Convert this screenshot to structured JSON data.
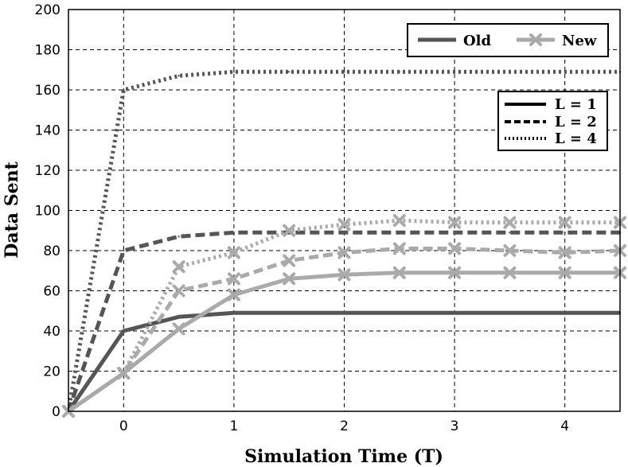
{
  "chart_data": {
    "type": "line",
    "xlabel": "Simulation Time (T)",
    "ylabel": "Data Sent",
    "xlim": [
      -0.5,
      4.5
    ],
    "ylim": [
      0,
      200
    ],
    "x_ticks": [
      0,
      1,
      2,
      3,
      4
    ],
    "y_ticks": [
      0,
      20,
      40,
      60,
      80,
      100,
      120,
      140,
      160,
      180,
      200
    ],
    "grid": true,
    "legend_method": {
      "placement": "top-right",
      "entries": [
        {
          "label": "Old",
          "color": "#555555",
          "marker": "none"
        },
        {
          "label": "New",
          "color": "#aaaaaa",
          "marker": "x"
        }
      ]
    },
    "legend_level": {
      "placement": "upper-right",
      "entries": [
        {
          "label": "L = 1",
          "dash": "solid"
        },
        {
          "label": "L = 2",
          "dash": "dashed"
        },
        {
          "label": "L = 4",
          "dash": "dotted"
        }
      ]
    },
    "series": [
      {
        "method": "Old",
        "level": "L = 1",
        "color": "#555555",
        "dash": "solid",
        "x": [
          -0.5,
          0,
          0.5,
          1,
          1.5,
          2,
          2.5,
          3,
          3.5,
          4,
          4.5
        ],
        "y": [
          0,
          40,
          47,
          49,
          49,
          49,
          49,
          49,
          49,
          49,
          49
        ]
      },
      {
        "method": "Old",
        "level": "L = 2",
        "color": "#555555",
        "dash": "dashed",
        "x": [
          -0.5,
          0,
          0.5,
          1,
          1.5,
          2,
          2.5,
          3,
          3.5,
          4,
          4.5
        ],
        "y": [
          0,
          80,
          87,
          89,
          89,
          89,
          89,
          89,
          89,
          89,
          89
        ]
      },
      {
        "method": "Old",
        "level": "L = 4",
        "color": "#555555",
        "dash": "dotted",
        "x": [
          -0.5,
          0,
          0.5,
          1,
          1.5,
          2,
          2.5,
          3,
          3.5,
          4,
          4.5
        ],
        "y": [
          0,
          160,
          167,
          169,
          169,
          169,
          169,
          169,
          169,
          169,
          169
        ]
      },
      {
        "method": "New",
        "level": "L = 1",
        "color": "#aaaaaa",
        "dash": "solid",
        "x": [
          -0.5,
          0,
          0.5,
          1,
          1.5,
          2,
          2.5,
          3,
          3.5,
          4,
          4.5
        ],
        "y": [
          0,
          19,
          41,
          58,
          66,
          68,
          69,
          69,
          69,
          69,
          69
        ]
      },
      {
        "method": "New",
        "level": "L = 2",
        "color": "#aaaaaa",
        "dash": "dashed",
        "x": [
          -0.5,
          0,
          0.5,
          1,
          1.5,
          2,
          2.5,
          3,
          3.5,
          4,
          4.5
        ],
        "y": [
          0,
          19,
          60,
          66,
          75,
          79,
          81,
          81,
          80,
          79,
          80
        ]
      },
      {
        "method": "New",
        "level": "L = 4",
        "color": "#aaaaaa",
        "dash": "dotted",
        "x": [
          -0.5,
          0,
          0.5,
          1,
          1.5,
          2,
          2.5,
          3,
          3.5,
          4,
          4.5
        ],
        "y": [
          0,
          19,
          72,
          79,
          90,
          93,
          95,
          94,
          94,
          94,
          94
        ]
      }
    ]
  }
}
